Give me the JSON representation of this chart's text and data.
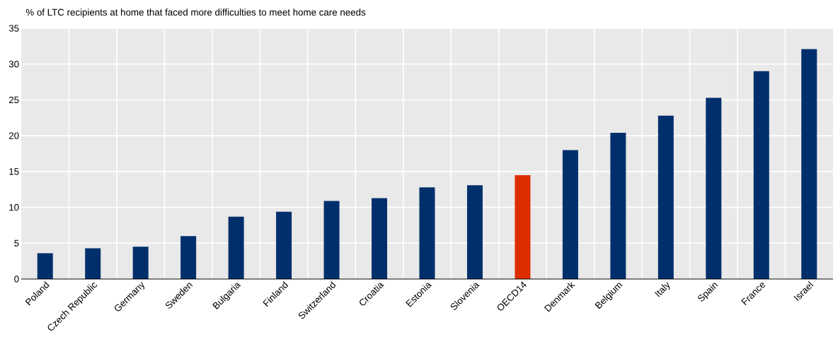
{
  "chart_data": {
    "type": "bar",
    "ylabel": "% of LTC recipients at home that faced more difficulties to meet home care needs",
    "categories": [
      "Poland",
      "Czech Republic",
      "Germany",
      "Sweden",
      "Bulgaria",
      "Finland",
      "Switzerland",
      "Croatia",
      "Estonia",
      "Slovenia",
      "OECD14",
      "Denmark",
      "Belgium",
      "Italy",
      "Spain",
      "France",
      "Israel"
    ],
    "values": [
      3.6,
      4.3,
      4.5,
      6.0,
      8.7,
      9.4,
      10.9,
      11.3,
      12.8,
      13.1,
      14.5,
      18.0,
      20.4,
      22.8,
      25.3,
      29.0,
      32.1
    ],
    "colors": [
      "#002f6c",
      "#002f6c",
      "#002f6c",
      "#002f6c",
      "#002f6c",
      "#002f6c",
      "#002f6c",
      "#002f6c",
      "#002f6c",
      "#002f6c",
      "#dd2e00",
      "#002f6c",
      "#002f6c",
      "#002f6c",
      "#002f6c",
      "#002f6c",
      "#002f6c"
    ],
    "ylim": [
      0,
      35
    ],
    "yticks": [
      0,
      5,
      10,
      15,
      20,
      25,
      30,
      35
    ],
    "grid": true
  }
}
